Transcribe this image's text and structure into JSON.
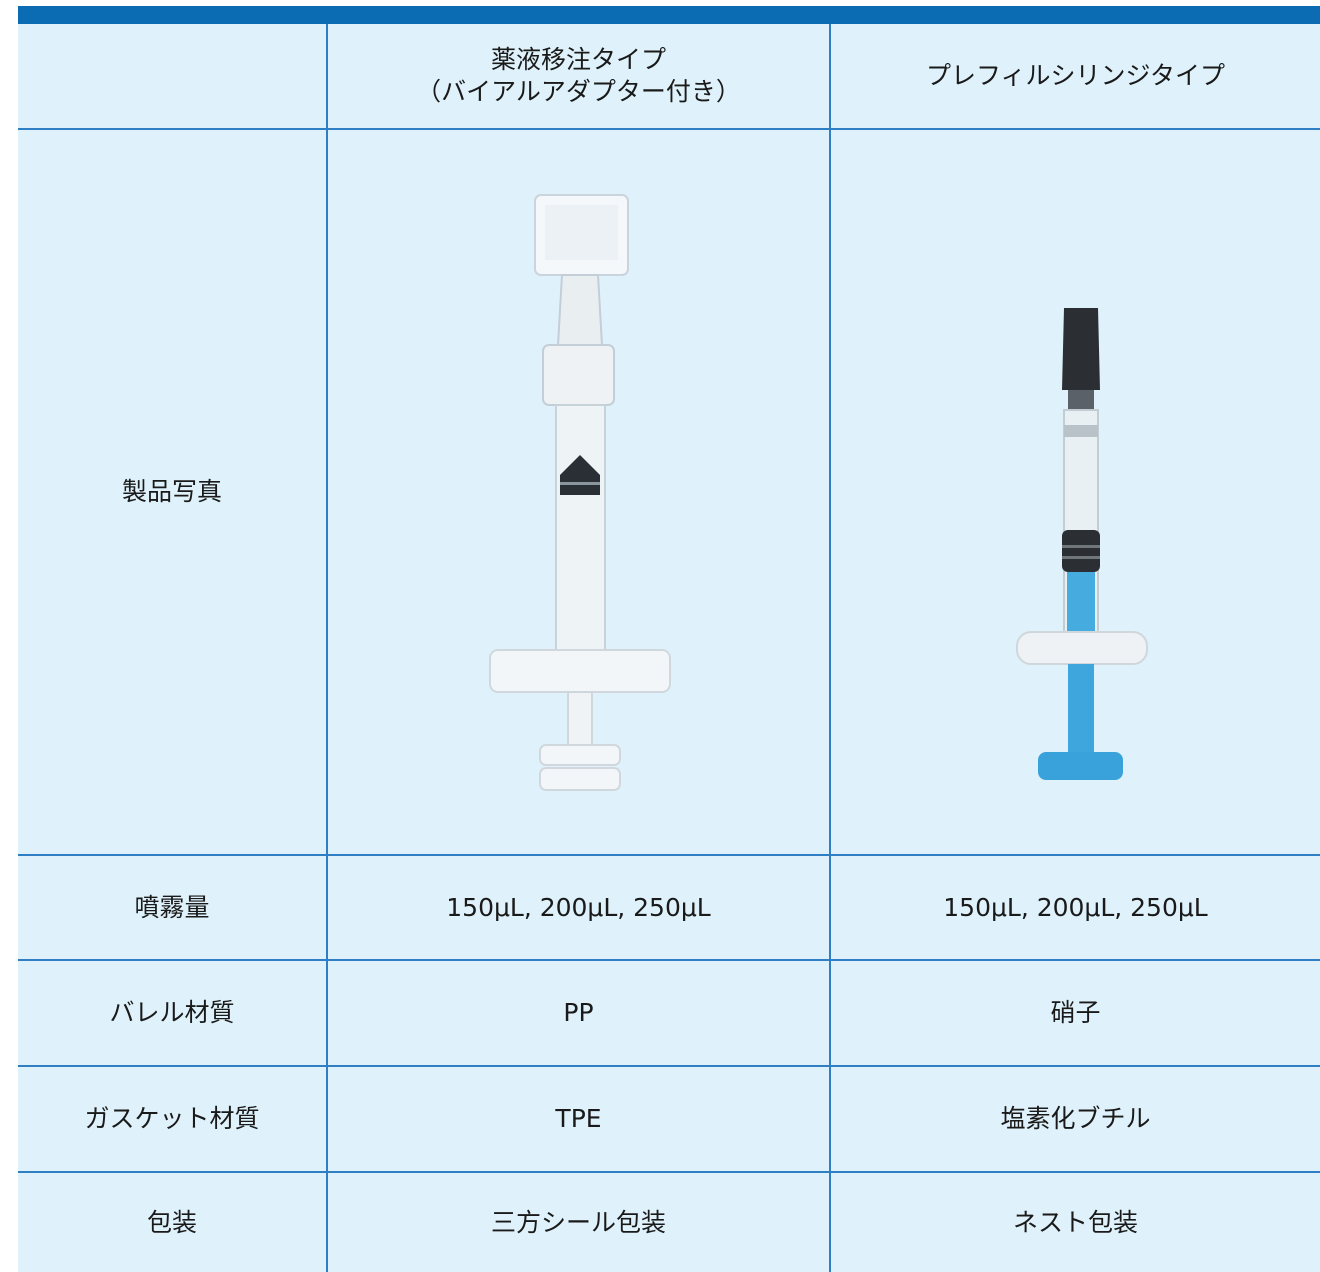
{
  "table": {
    "header": [
      {
        "lines": [
          "薬液移注タイプ",
          "（バイアルアダプター付き）"
        ]
      },
      {
        "lines": [
          "プレフィルシリンジタイプ"
        ]
      }
    ],
    "photo_row": {
      "label": "製品写真"
    },
    "rows": [
      [
        "噴霧量",
        "150μL, 200μL, 250μL",
        "150μL, 200μL, 250μL"
      ],
      [
        "バレル材質",
        "PP",
        "硝子"
      ],
      [
        "ガスケット材質",
        "TPE",
        "塩素化ブチル"
      ],
      [
        "包装",
        "三方シール包装",
        "ネスト包装"
      ]
    ]
  }
}
